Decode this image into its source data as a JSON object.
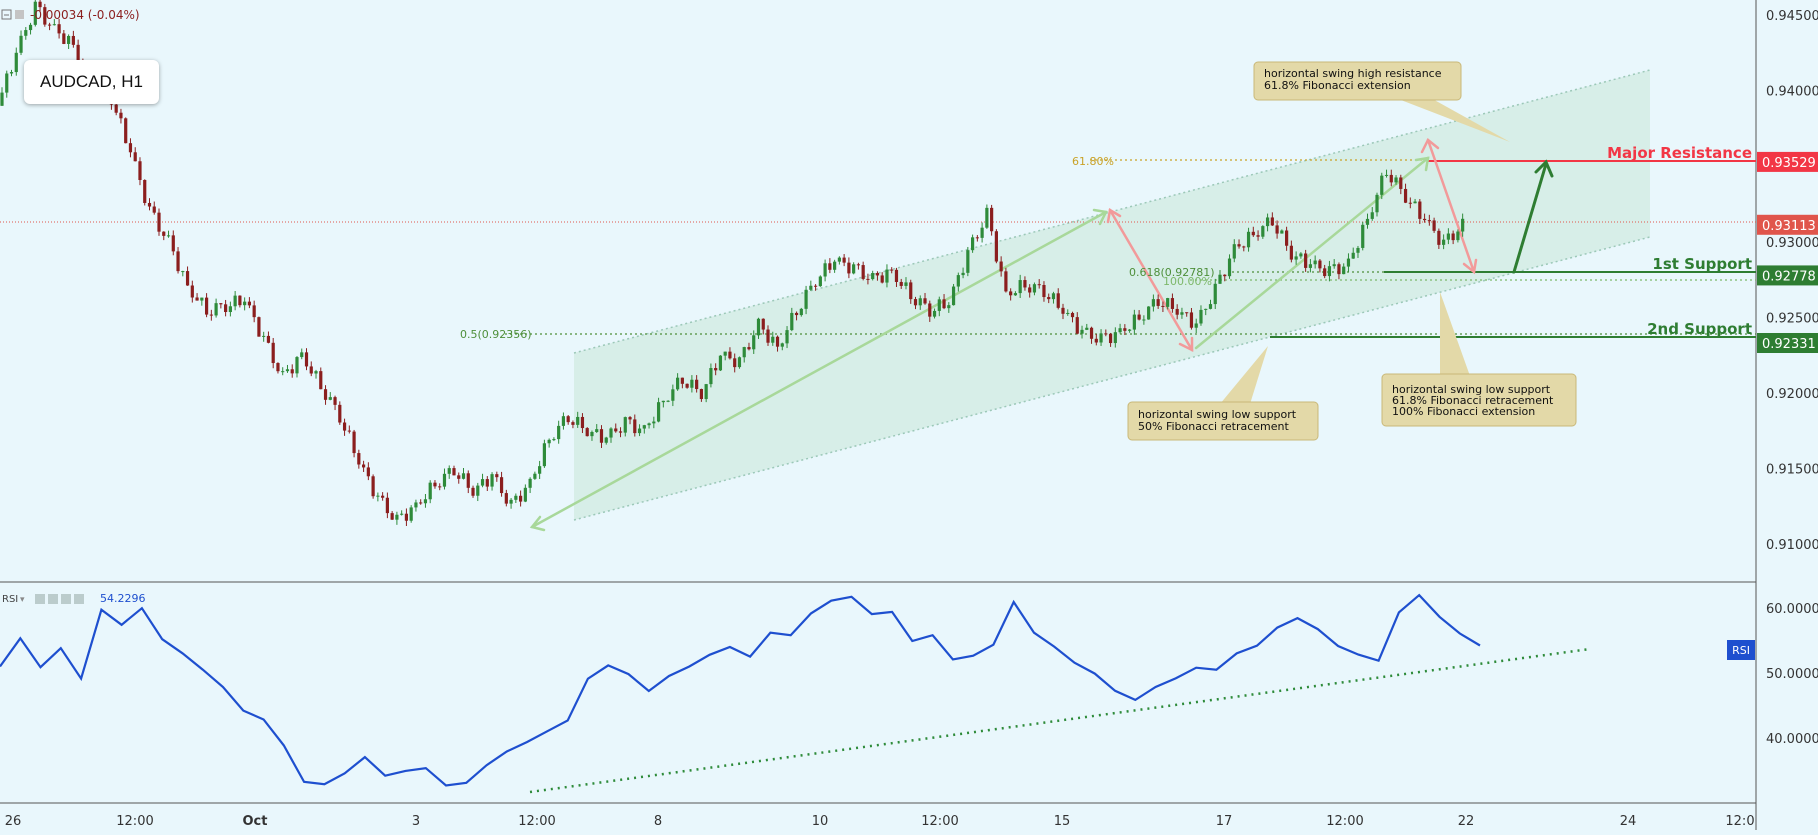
{
  "header": {
    "change_text": "-0.00034 (-0.04%)",
    "symbol_label": "AUDCAD, H1"
  },
  "rsi_panel": {
    "label": "RSI",
    "value": "54.2296",
    "badge": "RSI"
  },
  "price_axis": [
    "0.94500",
    "0.94000",
    "0.93500",
    "0.93000",
    "0.92500",
    "0.92000",
    "0.91500",
    "0.91000"
  ],
  "rsi_axis": [
    "60.0000",
    "50.0000",
    "40.0000"
  ],
  "time_axis": [
    "26",
    "12:00",
    "Oct",
    "3",
    "12:00",
    "8",
    "10",
    "12:00",
    "15",
    "17",
    "12:00",
    "22",
    "24",
    "12:0"
  ],
  "price_tags": [
    {
      "text": "0.93529",
      "color": "#f23645"
    },
    {
      "text": "0.93113",
      "color": "#e0554b"
    },
    {
      "text": "0.92778",
      "color": "#2e7d32"
    },
    {
      "text": "0.92331",
      "color": "#2e7d32"
    }
  ],
  "levels": {
    "resistance": "Major Resistance",
    "support1": "1st Support",
    "support2": "2nd Support"
  },
  "fib_labels": {
    "ext_618": "61.80%",
    "ret_618": "0.618(0.92781)",
    "ext_100": "100.00%",
    "ret_05": "0.5(0.92356)"
  },
  "callouts": {
    "resistance": [
      "horizontal swing high resistance",
      "61.8% Fibonacci extension"
    ],
    "support1": [
      "horizontal swing low support",
      "61.8% Fibonacci retracement",
      "100% Fibonacci extension"
    ],
    "support2": [
      "horizontal swing low support",
      "50% Fibonacci retracement"
    ]
  },
  "colors": {
    "background": "#e9f7fc",
    "up_candle": "#2e8b3a",
    "down_candle": "#8b1e1e",
    "rsi_line": "#1e4fcf",
    "channel_fill": "#cfe9e0",
    "resistance": "#f23645",
    "support": "#2e7d32"
  },
  "chart_data": {
    "type": "candlestick",
    "title": "AUDCAD, H1",
    "ylim": [
      0.9075,
      0.946
    ],
    "x": [
      "26",
      "12:00",
      "Oct",
      "3",
      "12:00",
      "8",
      "10",
      "12:00",
      "15",
      "17",
      "12:00",
      "22"
    ],
    "close_path": [
      [
        0,
        0.939
      ],
      [
        1,
        0.9425
      ],
      [
        2,
        0.9455
      ],
      [
        3,
        0.944
      ],
      [
        4,
        0.943
      ],
      [
        5,
        0.94
      ],
      [
        6,
        0.9395
      ],
      [
        7,
        0.936
      ],
      [
        8,
        0.932
      ],
      [
        9,
        0.93
      ],
      [
        10,
        0.927
      ],
      [
        11,
        0.9255
      ],
      [
        12,
        0.9258
      ],
      [
        13,
        0.9262
      ],
      [
        14,
        0.9235
      ],
      [
        15,
        0.921
      ],
      [
        16,
        0.9225
      ],
      [
        17,
        0.9205
      ],
      [
        18,
        0.9185
      ],
      [
        19,
        0.9155
      ],
      [
        20,
        0.913
      ],
      [
        21,
        0.9115
      ],
      [
        22,
        0.9125
      ],
      [
        23,
        0.914
      ],
      [
        24,
        0.915
      ],
      [
        25,
        0.9135
      ],
      [
        26,
        0.9145
      ],
      [
        27,
        0.9125
      ],
      [
        28,
        0.914
      ],
      [
        29,
        0.917
      ],
      [
        30,
        0.9185
      ],
      [
        31,
        0.9175
      ],
      [
        32,
        0.917
      ],
      [
        33,
        0.918
      ],
      [
        34,
        0.9175
      ],
      [
        35,
        0.9195
      ],
      [
        36,
        0.921
      ],
      [
        37,
        0.92
      ],
      [
        38,
        0.9225
      ],
      [
        39,
        0.922
      ],
      [
        40,
        0.9245
      ],
      [
        41,
        0.923
      ],
      [
        42,
        0.9255
      ],
      [
        43,
        0.9275
      ],
      [
        44,
        0.9288
      ],
      [
        45,
        0.9282
      ],
      [
        46,
        0.9275
      ],
      [
        47,
        0.928
      ],
      [
        48,
        0.9265
      ],
      [
        49,
        0.9255
      ],
      [
        50,
        0.926
      ],
      [
        51,
        0.9292
      ],
      [
        52,
        0.9318
      ],
      [
        53,
        0.9265
      ],
      [
        54,
        0.9272
      ],
      [
        55,
        0.9268
      ],
      [
        56,
        0.9255
      ],
      [
        57,
        0.924
      ],
      [
        58,
        0.9235
      ],
      [
        59,
        0.924
      ],
      [
        60,
        0.925
      ],
      [
        61,
        0.9262
      ],
      [
        62,
        0.9255
      ],
      [
        63,
        0.9245
      ],
      [
        64,
        0.9268
      ],
      [
        65,
        0.9295
      ],
      [
        66,
        0.9305
      ],
      [
        67,
        0.9315
      ],
      [
        68,
        0.9292
      ],
      [
        69,
        0.9285
      ],
      [
        70,
        0.928
      ],
      [
        71,
        0.9285
      ],
      [
        72,
        0.9315
      ],
      [
        73,
        0.9348
      ],
      [
        74,
        0.933
      ],
      [
        75,
        0.9315
      ],
      [
        76,
        0.9298
      ],
      [
        77,
        0.9311
      ]
    ],
    "rsi": {
      "ylim": [
        30,
        64
      ],
      "value": 54.2296,
      "points": [
        [
          0,
          51
        ],
        [
          1,
          56
        ],
        [
          2,
          52
        ],
        [
          3,
          55
        ],
        [
          4,
          50
        ],
        [
          5,
          60
        ],
        [
          6,
          57
        ],
        [
          7,
          59
        ],
        [
          8,
          54
        ],
        [
          9,
          52
        ],
        [
          10,
          50
        ],
        [
          11,
          48
        ],
        [
          12,
          45
        ],
        [
          13,
          44
        ],
        [
          14,
          40
        ],
        [
          15,
          34
        ],
        [
          16,
          33
        ],
        [
          17,
          34
        ],
        [
          18,
          36
        ],
        [
          19,
          33
        ],
        [
          20,
          34
        ],
        [
          21,
          35
        ],
        [
          22,
          33
        ],
        [
          23,
          34
        ],
        [
          24,
          37
        ],
        [
          25,
          39
        ],
        [
          26,
          40
        ],
        [
          27,
          41
        ],
        [
          28,
          42
        ],
        [
          29,
          48
        ],
        [
          30,
          50
        ],
        [
          31,
          49
        ],
        [
          32,
          47
        ],
        [
          33,
          50
        ],
        [
          34,
          52
        ],
        [
          35,
          54
        ],
        [
          36,
          55
        ],
        [
          37,
          53
        ],
        [
          38,
          56
        ],
        [
          39,
          55
        ],
        [
          40,
          58
        ],
        [
          41,
          60
        ],
        [
          42,
          61
        ],
        [
          43,
          59
        ],
        [
          44,
          60
        ],
        [
          45,
          56
        ],
        [
          46,
          57
        ],
        [
          47,
          53
        ],
        [
          48,
          53
        ],
        [
          49,
          54
        ],
        [
          50,
          60
        ],
        [
          51,
          55
        ],
        [
          52,
          53
        ],
        [
          53,
          51
        ],
        [
          54,
          50
        ],
        [
          55,
          48
        ],
        [
          56,
          47
        ],
        [
          57,
          49
        ],
        [
          58,
          50
        ],
        [
          59,
          51
        ],
        [
          60,
          50
        ],
        [
          61,
          52
        ],
        [
          62,
          53
        ],
        [
          63,
          56
        ],
        [
          64,
          58
        ],
        [
          65,
          57
        ],
        [
          66,
          55
        ],
        [
          67,
          54
        ],
        [
          68,
          53
        ],
        [
          69,
          60
        ],
        [
          70,
          62
        ],
        [
          71,
          58
        ],
        [
          72,
          55
        ],
        [
          73,
          54.2296
        ]
      ],
      "ticks": [
        60,
        50,
        40
      ]
    },
    "levels": [
      {
        "name": "Major Resistance",
        "value": 0.93529
      },
      {
        "name": "1st Support",
        "value": 0.92778
      },
      {
        "name": "2nd Support",
        "value": 0.92331
      }
    ],
    "current_price": 0.93113
  }
}
